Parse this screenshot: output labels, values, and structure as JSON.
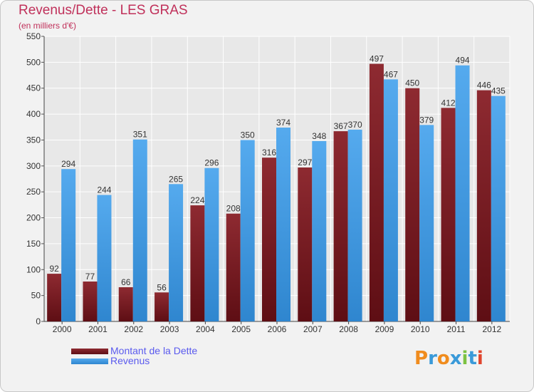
{
  "header": {
    "title": "Revenus/Dette - LES GRAS",
    "subtitle": "(en milliers d'€)"
  },
  "logo": {
    "text": "Proxiti",
    "letters": [
      "P",
      "r",
      "o",
      "x",
      "i",
      "t",
      "i"
    ],
    "colors": [
      "#f08c1e",
      "#3a9ad9",
      "#f08c1e",
      "#3a9ad9",
      "#7cc242",
      "#3a9ad9",
      "#e0462e"
    ]
  },
  "colors": {
    "dette": "#7a1c22",
    "revenus": "#3d97e0",
    "grid": "#ffffff",
    "background": "#e8e8e8"
  },
  "chart_data": {
    "type": "bar",
    "categories": [
      "2000",
      "2001",
      "2002",
      "2003",
      "2004",
      "2005",
      "2006",
      "2007",
      "2008",
      "2009",
      "2010",
      "2011",
      "2012"
    ],
    "series": [
      {
        "name": "Montant de la Dette",
        "values": [
          92,
          77,
          66,
          56,
          224,
          208,
          316,
          297,
          367,
          497,
          450,
          412,
          446
        ]
      },
      {
        "name": "Revenus",
        "values": [
          294,
          244,
          351,
          265,
          296,
          350,
          374,
          348,
          370,
          467,
          379,
          494,
          435
        ]
      }
    ],
    "yticks": [
      0,
      50,
      100,
      150,
      200,
      250,
      300,
      350,
      400,
      450,
      500,
      550
    ],
    "ylim": [
      0,
      550
    ],
    "grid": true,
    "legend": "bottom-left"
  }
}
